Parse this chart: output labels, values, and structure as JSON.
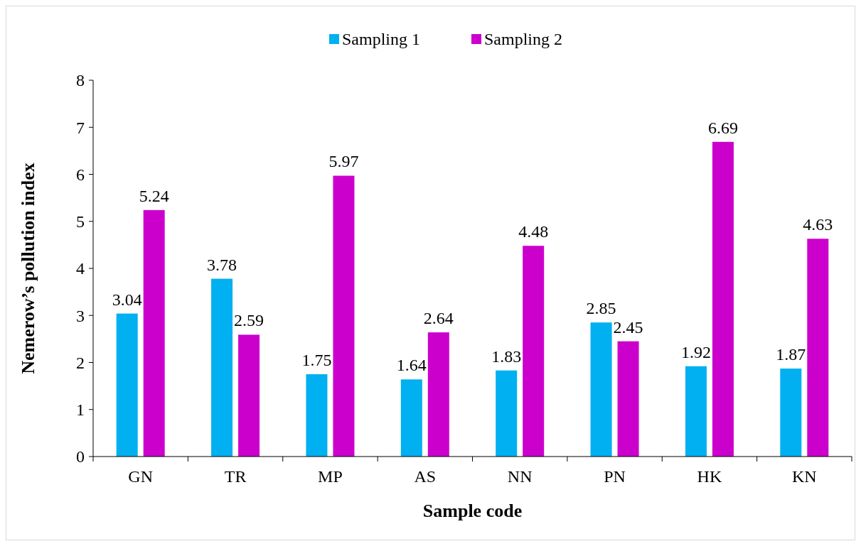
{
  "chart_data": {
    "type": "bar",
    "xlabel": "Sample code",
    "ylabel": "Nemerow’s pollution index",
    "categories": [
      "GN",
      "TR",
      "MP",
      "AS",
      "NN",
      "PN",
      "HK",
      "KN"
    ],
    "series": [
      {
        "name": "Sampling 1",
        "color": "#00b0f0",
        "values": [
          3.04,
          3.78,
          1.75,
          1.64,
          1.83,
          2.85,
          1.92,
          1.87
        ]
      },
      {
        "name": "Sampling 2",
        "color": "#cc00cc",
        "values": [
          5.24,
          2.59,
          5.97,
          2.64,
          4.48,
          2.45,
          6.69,
          4.63
        ]
      }
    ],
    "ylim": [
      0,
      8
    ],
    "yticks": [
      0,
      1,
      2,
      3,
      4,
      5,
      6,
      7,
      8
    ],
    "data_labels": true,
    "legend": "top",
    "grid": false
  }
}
